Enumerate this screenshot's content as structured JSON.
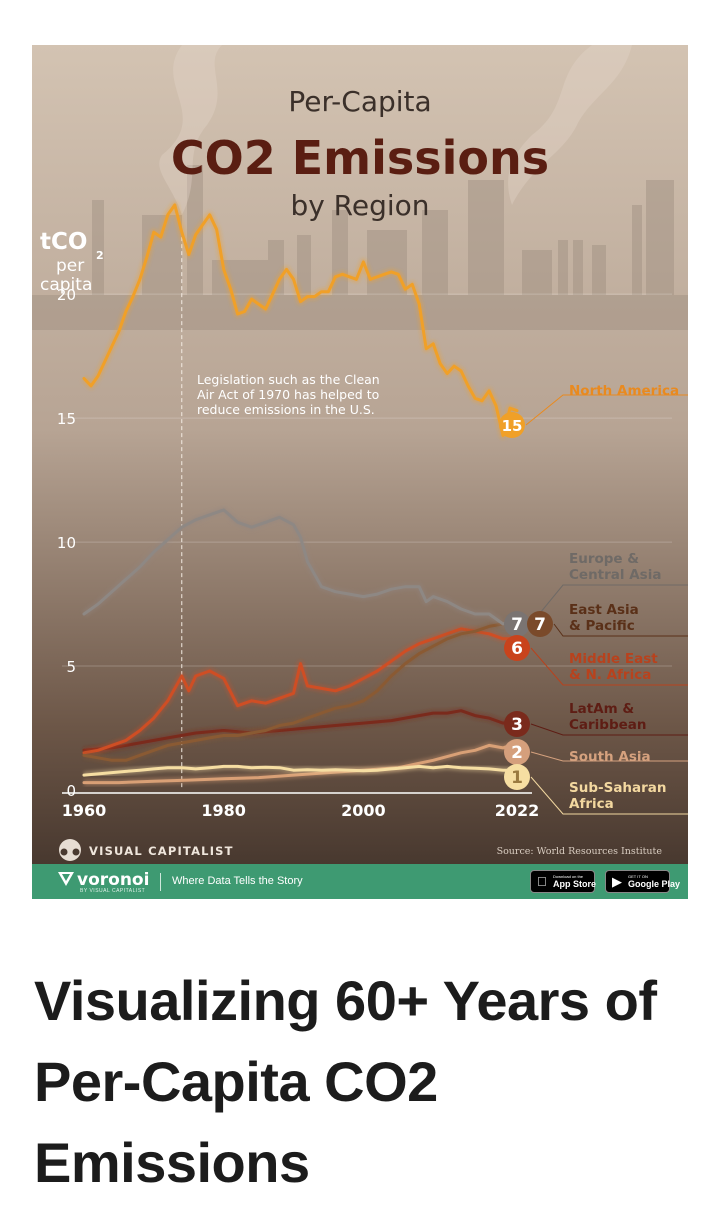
{
  "graphic": {
    "title_top": "Per-Capita",
    "title_main": "CO2 Emissions",
    "title_bottom": "by Region",
    "y_unit": {
      "main": "tCO",
      "sub": "2",
      "line2": "per",
      "line3": "capita"
    },
    "annotation": [
      "Legislation such as the Clean",
      "Air Act of 1970 has helped to",
      "reduce emissions in the U.S."
    ],
    "brand": "VISUAL CAPITALIST",
    "source": "Source: World Resources Institute",
    "footer": {
      "logo": "voronoi",
      "logo_sub": "BY VISUAL CAPITALIST",
      "tagline": "Where Data Tells the Story",
      "app_store_small": "Download on the",
      "app_store_big": "App Store",
      "google_small": "GET IT ON",
      "google_big": "Google Play"
    }
  },
  "article": {
    "title": "Visualizing 60+ Years of Per-Capita CO2 Emissions"
  },
  "colors": {
    "bg_top": "#d1c0ae",
    "bg_bottom": "#4b3b30",
    "title_dark": "#5a1e12",
    "north_america": "#f0a028",
    "europe_central_asia": "#8e8884",
    "east_asia_pacific": "#8a5a33",
    "middle_east_n_africa": "#cf4e24",
    "latam_caribbean": "#7a2a1c",
    "south_asia": "#d9a076",
    "sub_saharan_africa": "#f6dea2",
    "footer_green": "#3e9a72"
  },
  "chart_data": {
    "type": "line",
    "x_ticks": [
      "1960",
      "1980",
      "2000",
      "2022"
    ],
    "y_ticks": [
      "0",
      "5",
      "10",
      "15",
      "20"
    ],
    "xlim": [
      1960,
      2022
    ],
    "ylim": [
      0,
      24
    ],
    "series": [
      {
        "name": "North America",
        "label": [
          "North America"
        ],
        "rank": "15",
        "color": "#f0a028",
        "x": [
          1960,
          1961,
          1962,
          1963,
          1964,
          1965,
          1966,
          1967,
          1968,
          1969,
          1970,
          1971,
          1972,
          1973,
          1974,
          1975,
          1976,
          1977,
          1978,
          1979,
          1980,
          1981,
          1982,
          1983,
          1984,
          1985,
          1986,
          1987,
          1988,
          1989,
          1990,
          1991,
          1992,
          1993,
          1994,
          1995,
          1996,
          1997,
          1998,
          1999,
          2000,
          2001,
          2002,
          2003,
          2004,
          2005,
          2006,
          2007,
          2008,
          2009,
          2010,
          2011,
          2012,
          2013,
          2014,
          2015,
          2016,
          2017,
          2018,
          2019,
          2020,
          2021,
          2022
        ],
        "y": [
          16.6,
          16.3,
          16.7,
          17.3,
          17.9,
          18.5,
          19.3,
          19.9,
          20.6,
          21.5,
          22.5,
          22.3,
          23.2,
          23.6,
          22.5,
          21.6,
          22.4,
          22.8,
          23.2,
          22.6,
          21.0,
          20.2,
          19.2,
          19.3,
          19.8,
          19.6,
          19.4,
          20.0,
          20.6,
          21.0,
          20.6,
          19.7,
          19.9,
          19.9,
          20.1,
          20.1,
          20.7,
          20.8,
          20.7,
          20.6,
          21.3,
          20.6,
          20.7,
          20.8,
          20.9,
          20.8,
          20.2,
          20.4,
          19.6,
          17.8,
          18.0,
          17.2,
          16.8,
          17.1,
          16.9,
          16.3,
          15.8,
          15.7,
          16.1,
          15.5,
          14.3,
          15.4,
          15.3
        ]
      },
      {
        "name": "Europe & Central Asia",
        "label": [
          "Europe &",
          "Central Asia"
        ],
        "rank": "7",
        "color": "#8e8884",
        "x": [
          1960,
          1962,
          1964,
          1966,
          1968,
          1970,
          1972,
          1974,
          1976,
          1978,
          1980,
          1982,
          1984,
          1986,
          1988,
          1990,
          1991,
          1992,
          1994,
          1996,
          1998,
          2000,
          2002,
          2004,
          2006,
          2008,
          2009,
          2010,
          2012,
          2014,
          2016,
          2018,
          2020,
          2022
        ],
        "y": [
          7.1,
          7.5,
          8.0,
          8.5,
          9.0,
          9.6,
          10.1,
          10.6,
          10.9,
          11.1,
          11.3,
          10.8,
          10.6,
          10.8,
          11.0,
          10.7,
          10.2,
          9.2,
          8.2,
          8.0,
          7.9,
          7.8,
          7.9,
          8.1,
          8.2,
          8.2,
          7.6,
          7.8,
          7.6,
          7.3,
          7.1,
          7.1,
          6.7,
          6.9
        ]
      },
      {
        "name": "East Asia & Pacific",
        "label": [
          "East Asia",
          "& Pacific"
        ],
        "rank": "7",
        "color": "#8a5a33",
        "x": [
          1960,
          1962,
          1964,
          1966,
          1968,
          1970,
          1972,
          1974,
          1976,
          1978,
          1980,
          1982,
          1984,
          1986,
          1988,
          1990,
          1992,
          1994,
          1996,
          1998,
          2000,
          2002,
          2004,
          2006,
          2008,
          2010,
          2012,
          2014,
          2016,
          2018,
          2020,
          2022
        ],
        "y": [
          1.4,
          1.3,
          1.2,
          1.2,
          1.4,
          1.6,
          1.8,
          1.9,
          2.0,
          2.1,
          2.2,
          2.2,
          2.3,
          2.4,
          2.6,
          2.7,
          2.9,
          3.1,
          3.3,
          3.4,
          3.6,
          4.0,
          4.6,
          5.1,
          5.5,
          5.8,
          6.1,
          6.3,
          6.4,
          6.6,
          6.7,
          6.9
        ]
      },
      {
        "name": "Middle East & N. Africa",
        "label": [
          "Middle East",
          "& N. Africa"
        ],
        "rank": "6",
        "color": "#cf4e24",
        "x": [
          1960,
          1962,
          1964,
          1966,
          1968,
          1970,
          1972,
          1974,
          1975,
          1976,
          1978,
          1980,
          1982,
          1984,
          1986,
          1988,
          1990,
          1991,
          1992,
          1994,
          1996,
          1998,
          2000,
          2002,
          2004,
          2006,
          2008,
          2010,
          2012,
          2014,
          2016,
          2018,
          2020,
          2022
        ],
        "y": [
          1.5,
          1.6,
          1.8,
          2.0,
          2.4,
          2.9,
          3.6,
          4.6,
          4.0,
          4.6,
          4.8,
          4.5,
          3.4,
          3.6,
          3.5,
          3.7,
          3.9,
          5.1,
          4.2,
          4.1,
          4.0,
          4.2,
          4.5,
          4.8,
          5.2,
          5.6,
          5.9,
          6.1,
          6.3,
          6.5,
          6.4,
          6.3,
          6.1,
          6.1
        ]
      },
      {
        "name": "LatAm & Caribbean",
        "label": [
          "LatAm &",
          "Caribbean"
        ],
        "rank": "3",
        "color": "#7a2a1c",
        "x": [
          1960,
          1964,
          1968,
          1972,
          1976,
          1980,
          1984,
          1988,
          1992,
          1996,
          2000,
          2004,
          2008,
          2010,
          2012,
          2014,
          2016,
          2018,
          2020,
          2022
        ],
        "y": [
          1.6,
          1.7,
          1.9,
          2.1,
          2.3,
          2.4,
          2.3,
          2.4,
          2.5,
          2.6,
          2.7,
          2.8,
          3.0,
          3.1,
          3.1,
          3.2,
          3.0,
          2.9,
          2.7,
          2.8
        ]
      },
      {
        "name": "South Asia",
        "label": [
          "South Asia"
        ],
        "rank": "2",
        "color": "#d9a076",
        "x": [
          1960,
          1965,
          1970,
          1975,
          1980,
          1985,
          1990,
          1995,
          2000,
          2005,
          2010,
          2014,
          2016,
          2018,
          2020,
          2022
        ],
        "y": [
          0.3,
          0.3,
          0.35,
          0.4,
          0.45,
          0.5,
          0.6,
          0.7,
          0.8,
          0.9,
          1.2,
          1.5,
          1.6,
          1.8,
          1.7,
          1.9
        ]
      },
      {
        "name": "Sub-Saharan Africa",
        "label": [
          "Sub-Saharan",
          "Africa"
        ],
        "rank": "1",
        "color": "#f6dea2",
        "x": [
          1960,
          1962,
          1964,
          1966,
          1968,
          1970,
          1972,
          1974,
          1976,
          1978,
          1980,
          1982,
          1984,
          1986,
          1988,
          1990,
          1992,
          1994,
          1996,
          1998,
          2000,
          2002,
          2004,
          2006,
          2008,
          2010,
          2012,
          2014,
          2016,
          2018,
          2020,
          2022
        ],
        "y": [
          0.6,
          0.65,
          0.7,
          0.75,
          0.8,
          0.85,
          0.9,
          0.9,
          0.85,
          0.9,
          0.95,
          0.95,
          0.9,
          0.92,
          0.9,
          0.8,
          0.82,
          0.8,
          0.82,
          0.8,
          0.78,
          0.8,
          0.85,
          0.9,
          0.95,
          0.9,
          0.95,
          0.9,
          0.88,
          0.85,
          0.8,
          0.8
        ]
      }
    ]
  }
}
